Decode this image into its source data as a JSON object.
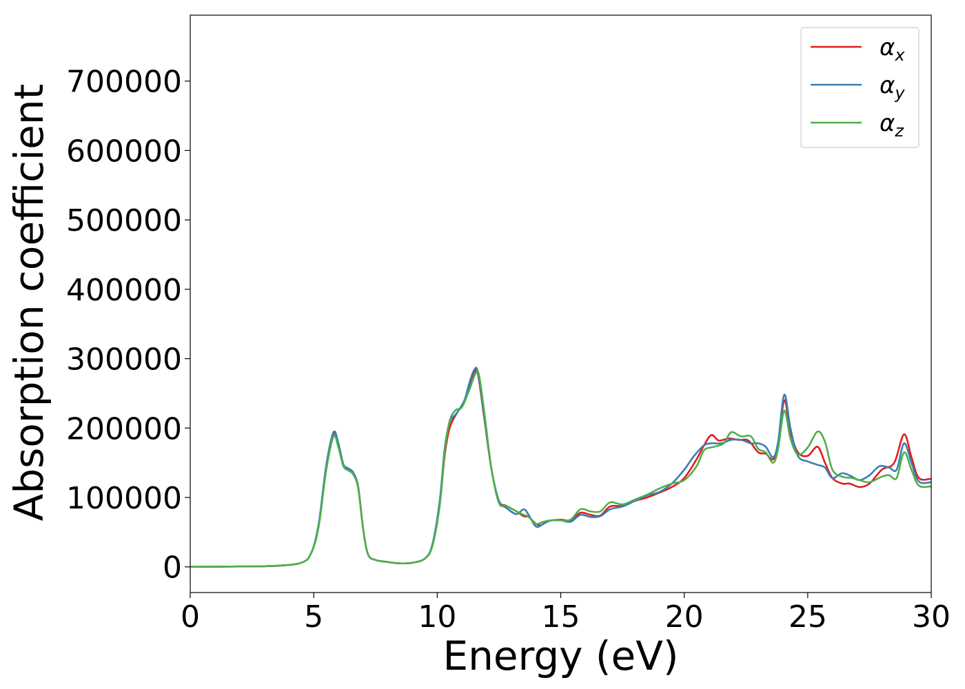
{
  "chart_data": {
    "type": "line",
    "title": "",
    "xlabel": "Energy (eV)",
    "ylabel": "Absorption coefficient",
    "xlim": [
      0,
      30
    ],
    "ylim": [
      -37000,
      795000
    ],
    "xticks": [
      0,
      5,
      10,
      15,
      20,
      25,
      30
    ],
    "xtick_labels": [
      "0",
      "5",
      "10",
      "15",
      "20",
      "25",
      "30"
    ],
    "yticks": [
      0,
      100000,
      200000,
      300000,
      400000,
      500000,
      600000,
      700000
    ],
    "ytick_labels": [
      "0",
      "100000",
      "200000",
      "300000",
      "400000",
      "500000",
      "600000",
      "700000"
    ],
    "grid": false,
    "legend_position": "top-right",
    "series": [
      {
        "name": "α",
        "subscript": "x",
        "color": "#e41a1c",
        "points": [
          [
            0,
            0
          ],
          [
            2,
            500
          ],
          [
            3.5,
            1500
          ],
          [
            4.5,
            6000
          ],
          [
            4.9,
            20000
          ],
          [
            5.2,
            60000
          ],
          [
            5.5,
            140000
          ],
          [
            5.8,
            192000
          ],
          [
            6.0,
            175000
          ],
          [
            6.2,
            147000
          ],
          [
            6.4,
            141000
          ],
          [
            6.6,
            135000
          ],
          [
            6.8,
            115000
          ],
          [
            7.0,
            55000
          ],
          [
            7.2,
            18000
          ],
          [
            7.5,
            10000
          ],
          [
            8.0,
            7000
          ],
          [
            8.5,
            5000
          ],
          [
            9.0,
            6000
          ],
          [
            9.5,
            12000
          ],
          [
            9.8,
            30000
          ],
          [
            10.1,
            90000
          ],
          [
            10.3,
            160000
          ],
          [
            10.5,
            200000
          ],
          [
            10.8,
            222000
          ],
          [
            11.1,
            238000
          ],
          [
            11.3,
            260000
          ],
          [
            11.5,
            280000
          ],
          [
            11.65,
            277000
          ],
          [
            11.9,
            215000
          ],
          [
            12.2,
            140000
          ],
          [
            12.5,
            95000
          ],
          [
            12.8,
            88000
          ],
          [
            13.2,
            80000
          ],
          [
            13.5,
            73000
          ],
          [
            13.7,
            72000
          ],
          [
            14.0,
            62000
          ],
          [
            14.2,
            60000
          ],
          [
            14.5,
            66000
          ],
          [
            15.0,
            68000
          ],
          [
            15.4,
            67000
          ],
          [
            15.8,
            78000
          ],
          [
            16.2,
            75000
          ],
          [
            16.6,
            74000
          ],
          [
            17.0,
            87000
          ],
          [
            17.5,
            88000
          ],
          [
            18.0,
            95000
          ],
          [
            18.5,
            100000
          ],
          [
            19.0,
            107000
          ],
          [
            19.5,
            115000
          ],
          [
            20.0,
            128000
          ],
          [
            20.5,
            155000
          ],
          [
            20.8,
            175000
          ],
          [
            21.1,
            190000
          ],
          [
            21.4,
            182000
          ],
          [
            21.8,
            185000
          ],
          [
            22.2,
            183000
          ],
          [
            22.6,
            182000
          ],
          [
            23.0,
            165000
          ],
          [
            23.3,
            163000
          ],
          [
            23.6,
            155000
          ],
          [
            23.8,
            175000
          ],
          [
            24.05,
            240000
          ],
          [
            24.3,
            195000
          ],
          [
            24.6,
            165000
          ],
          [
            25.0,
            160000
          ],
          [
            25.4,
            173000
          ],
          [
            25.7,
            150000
          ],
          [
            26.0,
            128000
          ],
          [
            26.4,
            120000
          ],
          [
            26.7,
            120000
          ],
          [
            27.1,
            115000
          ],
          [
            27.5,
            120000
          ],
          [
            28.0,
            140000
          ],
          [
            28.5,
            150000
          ],
          [
            28.9,
            191000
          ],
          [
            29.2,
            158000
          ],
          [
            29.5,
            128000
          ],
          [
            30.0,
            127000
          ]
        ]
      },
      {
        "name": "α",
        "subscript": "y",
        "color": "#377eb8",
        "points": [
          [
            0,
            0
          ],
          [
            2,
            500
          ],
          [
            3.5,
            1500
          ],
          [
            4.5,
            6000
          ],
          [
            4.9,
            20000
          ],
          [
            5.2,
            62000
          ],
          [
            5.5,
            145000
          ],
          [
            5.8,
            194000
          ],
          [
            6.0,
            178000
          ],
          [
            6.2,
            148000
          ],
          [
            6.4,
            142000
          ],
          [
            6.6,
            136000
          ],
          [
            6.8,
            115000
          ],
          [
            7.0,
            55000
          ],
          [
            7.2,
            18000
          ],
          [
            7.5,
            10000
          ],
          [
            8.0,
            7000
          ],
          [
            8.5,
            5000
          ],
          [
            9.0,
            6000
          ],
          [
            9.5,
            12000
          ],
          [
            9.8,
            32000
          ],
          [
            10.1,
            95000
          ],
          [
            10.3,
            170000
          ],
          [
            10.5,
            208000
          ],
          [
            10.8,
            222000
          ],
          [
            11.1,
            240000
          ],
          [
            11.3,
            265000
          ],
          [
            11.5,
            284000
          ],
          [
            11.65,
            280000
          ],
          [
            11.9,
            218000
          ],
          [
            12.2,
            140000
          ],
          [
            12.5,
            95000
          ],
          [
            12.8,
            85000
          ],
          [
            13.2,
            76000
          ],
          [
            13.5,
            83000
          ],
          [
            13.7,
            75000
          ],
          [
            14.0,
            58000
          ],
          [
            14.3,
            62000
          ],
          [
            14.6,
            67000
          ],
          [
            15.0,
            67000
          ],
          [
            15.4,
            65000
          ],
          [
            15.8,
            75000
          ],
          [
            16.2,
            72000
          ],
          [
            16.6,
            73000
          ],
          [
            17.0,
            83000
          ],
          [
            17.5,
            87000
          ],
          [
            18.0,
            95000
          ],
          [
            18.5,
            103000
          ],
          [
            19.0,
            108000
          ],
          [
            19.5,
            120000
          ],
          [
            20.0,
            140000
          ],
          [
            20.4,
            160000
          ],
          [
            20.8,
            175000
          ],
          [
            21.1,
            178000
          ],
          [
            21.5,
            178000
          ],
          [
            21.9,
            183000
          ],
          [
            22.3,
            183000
          ],
          [
            22.7,
            178000
          ],
          [
            23.0,
            178000
          ],
          [
            23.3,
            173000
          ],
          [
            23.6,
            158000
          ],
          [
            23.8,
            180000
          ],
          [
            24.05,
            248000
          ],
          [
            24.3,
            200000
          ],
          [
            24.6,
            160000
          ],
          [
            25.0,
            152000
          ],
          [
            25.4,
            147000
          ],
          [
            25.7,
            143000
          ],
          [
            26.0,
            128000
          ],
          [
            26.4,
            135000
          ],
          [
            26.8,
            130000
          ],
          [
            27.1,
            125000
          ],
          [
            27.5,
            132000
          ],
          [
            27.9,
            145000
          ],
          [
            28.3,
            143000
          ],
          [
            28.6,
            140000
          ],
          [
            28.9,
            178000
          ],
          [
            29.2,
            150000
          ],
          [
            29.5,
            123000
          ],
          [
            30.0,
            122000
          ]
        ]
      },
      {
        "name": "α",
        "subscript": "z",
        "color": "#4daf4a",
        "points": [
          [
            0,
            0
          ],
          [
            2,
            500
          ],
          [
            3.5,
            1500
          ],
          [
            4.5,
            6000
          ],
          [
            4.9,
            20000
          ],
          [
            5.2,
            58000
          ],
          [
            5.5,
            138000
          ],
          [
            5.8,
            188000
          ],
          [
            6.0,
            172000
          ],
          [
            6.2,
            145000
          ],
          [
            6.4,
            139000
          ],
          [
            6.6,
            133000
          ],
          [
            6.8,
            113000
          ],
          [
            7.0,
            54000
          ],
          [
            7.2,
            18000
          ],
          [
            7.5,
            10000
          ],
          [
            8.0,
            7000
          ],
          [
            8.5,
            5000
          ],
          [
            9.0,
            6000
          ],
          [
            9.5,
            12000
          ],
          [
            9.8,
            30000
          ],
          [
            10.1,
            88000
          ],
          [
            10.3,
            165000
          ],
          [
            10.5,
            210000
          ],
          [
            10.75,
            226000
          ],
          [
            11.0,
            230000
          ],
          [
            11.3,
            255000
          ],
          [
            11.55,
            279000
          ],
          [
            11.7,
            275000
          ],
          [
            11.95,
            210000
          ],
          [
            12.2,
            140000
          ],
          [
            12.5,
            92000
          ],
          [
            12.8,
            88000
          ],
          [
            13.2,
            80000
          ],
          [
            13.5,
            75000
          ],
          [
            13.7,
            72000
          ],
          [
            14.0,
            62000
          ],
          [
            14.3,
            65000
          ],
          [
            14.6,
            67000
          ],
          [
            15.0,
            67000
          ],
          [
            15.4,
            68000
          ],
          [
            15.8,
            83000
          ],
          [
            16.2,
            80000
          ],
          [
            16.6,
            80000
          ],
          [
            17.0,
            93000
          ],
          [
            17.5,
            90000
          ],
          [
            18.0,
            97000
          ],
          [
            18.5,
            104000
          ],
          [
            19.0,
            113000
          ],
          [
            19.5,
            120000
          ],
          [
            20.0,
            125000
          ],
          [
            20.5,
            145000
          ],
          [
            20.8,
            168000
          ],
          [
            21.2,
            173000
          ],
          [
            21.6,
            178000
          ],
          [
            21.9,
            194000
          ],
          [
            22.3,
            188000
          ],
          [
            22.7,
            188000
          ],
          [
            23.0,
            170000
          ],
          [
            23.3,
            165000
          ],
          [
            23.6,
            150000
          ],
          [
            23.8,
            170000
          ],
          [
            24.05,
            225000
          ],
          [
            24.3,
            185000
          ],
          [
            24.6,
            162000
          ],
          [
            25.0,
            172000
          ],
          [
            25.4,
            195000
          ],
          [
            25.7,
            180000
          ],
          [
            26.0,
            140000
          ],
          [
            26.4,
            130000
          ],
          [
            26.8,
            128000
          ],
          [
            27.1,
            125000
          ],
          [
            27.5,
            122000
          ],
          [
            28.0,
            130000
          ],
          [
            28.3,
            132000
          ],
          [
            28.6,
            128000
          ],
          [
            28.9,
            165000
          ],
          [
            29.2,
            140000
          ],
          [
            29.5,
            117000
          ],
          [
            30.0,
            116000
          ]
        ]
      }
    ]
  }
}
